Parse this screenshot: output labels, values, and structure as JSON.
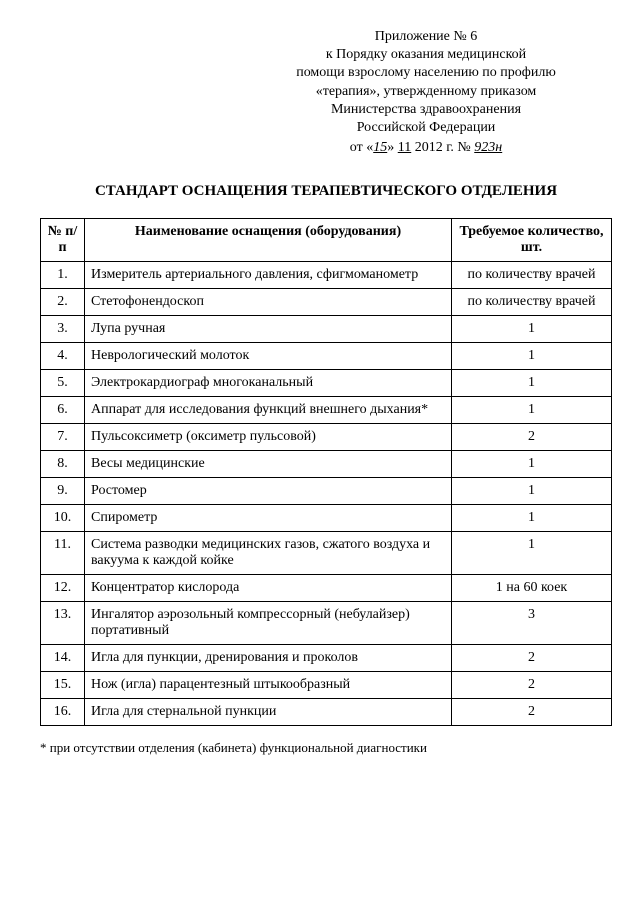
{
  "header": {
    "line1": "Приложение № 6",
    "line2": "к Порядку оказания медицинской",
    "line3": "помощи взрослому населению по профилю",
    "line4": "«терапия», утвержденному приказом",
    "line5": "Министерства здравоохранения",
    "line6": "Российской Федерации",
    "date_prefix": "от «",
    "date_day": "15",
    "date_mid": "»  ",
    "date_month": "11",
    "date_year": "  2012 г. № ",
    "date_number": "923н"
  },
  "title": "СТАНДАРТ ОСНАЩЕНИЯ ТЕРАПЕВТИЧЕСКОГО ОТДЕЛЕНИЯ",
  "columns": {
    "num": "№ п/п",
    "name": "Наименование оснащения (оборудования)",
    "qty": "Требуемое количество, шт."
  },
  "rows": [
    {
      "num": "1.",
      "name": "Измеритель артериального давления, сфигмоманометр",
      "qty": "по количеству врачей"
    },
    {
      "num": "2.",
      "name": "Стетофонендоскоп",
      "qty": "по количеству врачей"
    },
    {
      "num": "3.",
      "name": "Лупа ручная",
      "qty": "1"
    },
    {
      "num": "4.",
      "name": "Неврологический молоток",
      "qty": "1"
    },
    {
      "num": "5.",
      "name": "Электрокардиограф многоканальный",
      "qty": "1"
    },
    {
      "num": "6.",
      "name": "Аппарат для исследования функций внешнего дыхания*",
      "qty": "1"
    },
    {
      "num": "7.",
      "name": "Пульсоксиметр (оксиметр пульсовой)",
      "qty": "2"
    },
    {
      "num": "8.",
      "name": "Весы медицинские",
      "qty": "1"
    },
    {
      "num": "9.",
      "name": "Ростомер",
      "qty": "1"
    },
    {
      "num": "10.",
      "name": "Спирометр",
      "qty": "1"
    },
    {
      "num": "11.",
      "name": "Система разводки медицинских газов, сжатого воздуха и вакуума к каждой койке",
      "qty": "1"
    },
    {
      "num": "12.",
      "name": "Концентратор кислорода",
      "qty": "1 на 60 коек"
    },
    {
      "num": "13.",
      "name": "Ингалятор аэрозольный компрессорный (небулайзер) портативный",
      "qty": "3"
    },
    {
      "num": "14.",
      "name": "Игла для пункции, дренирования и проколов",
      "qty": "2"
    },
    {
      "num": "15.",
      "name": "Нож (игла) парацентезный штыкообразный",
      "qty": "2"
    },
    {
      "num": "16.",
      "name": "Игла для стернальной пункции",
      "qty": "2"
    }
  ],
  "footnote": "* при отсутствии отделения (кабинета) функциональной диагностики"
}
